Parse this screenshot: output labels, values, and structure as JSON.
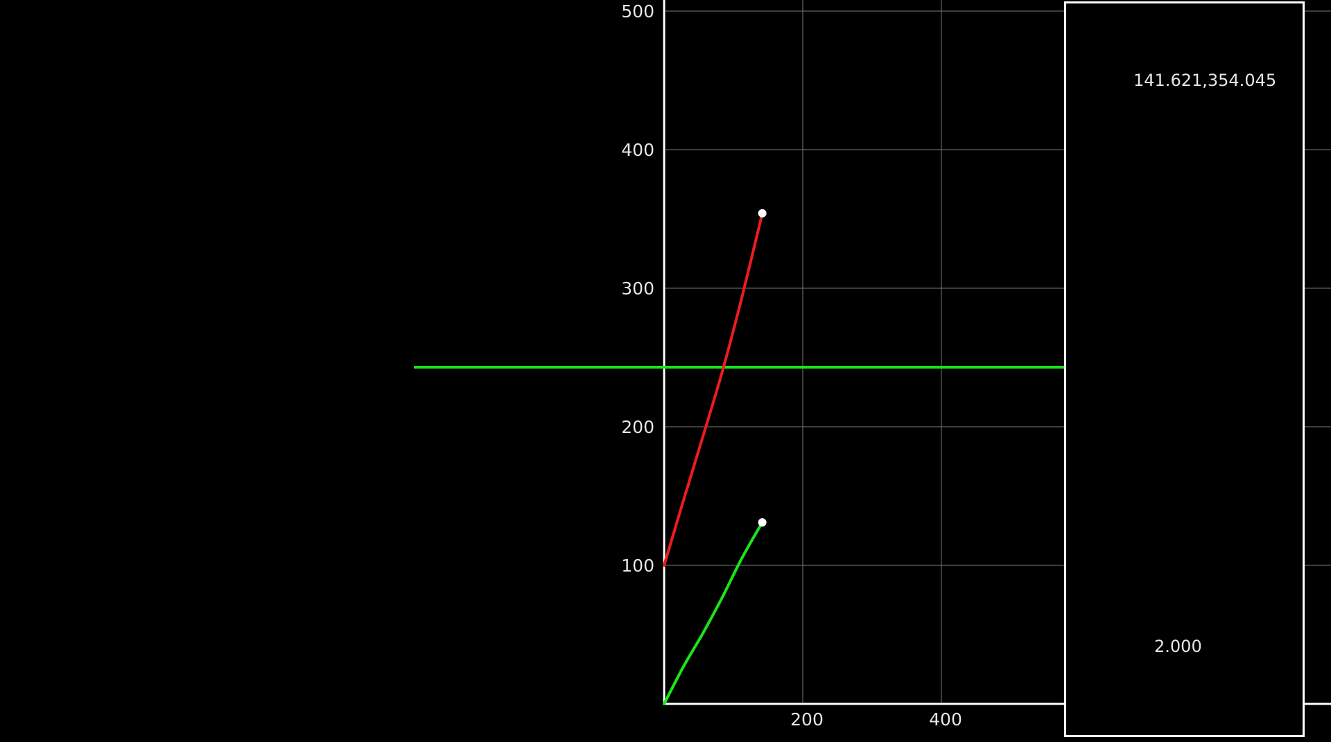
{
  "chart_data": {
    "type": "line",
    "title": "",
    "xlabel": "",
    "ylabel": "",
    "xlim": [
      0,
      580
    ],
    "ylim": [
      0,
      510
    ],
    "x_ticks": [
      "200",
      "400"
    ],
    "y_ticks": [
      "100",
      "200",
      "300",
      "400",
      "500"
    ],
    "grid": true,
    "series": [
      {
        "color": "#ee1c1c",
        "x": [
          0,
          28,
          56,
          84,
          112,
          141.621
        ],
        "y": [
          100,
          147,
          193,
          240,
          293,
          354.045
        ],
        "endpoint_marker": true
      },
      {
        "color": "#19e619",
        "x": [
          0,
          28,
          56,
          84,
          112,
          141.621
        ],
        "y": [
          0,
          27,
          51,
          77,
          105,
          131
        ],
        "endpoint_marker": true
      }
    ],
    "reference_line": {
      "orientation": "horizontal",
      "y": 243,
      "color": "#19e619"
    }
  },
  "readout": {
    "coordinates": "141.621,354.045",
    "scale": "2.000"
  }
}
